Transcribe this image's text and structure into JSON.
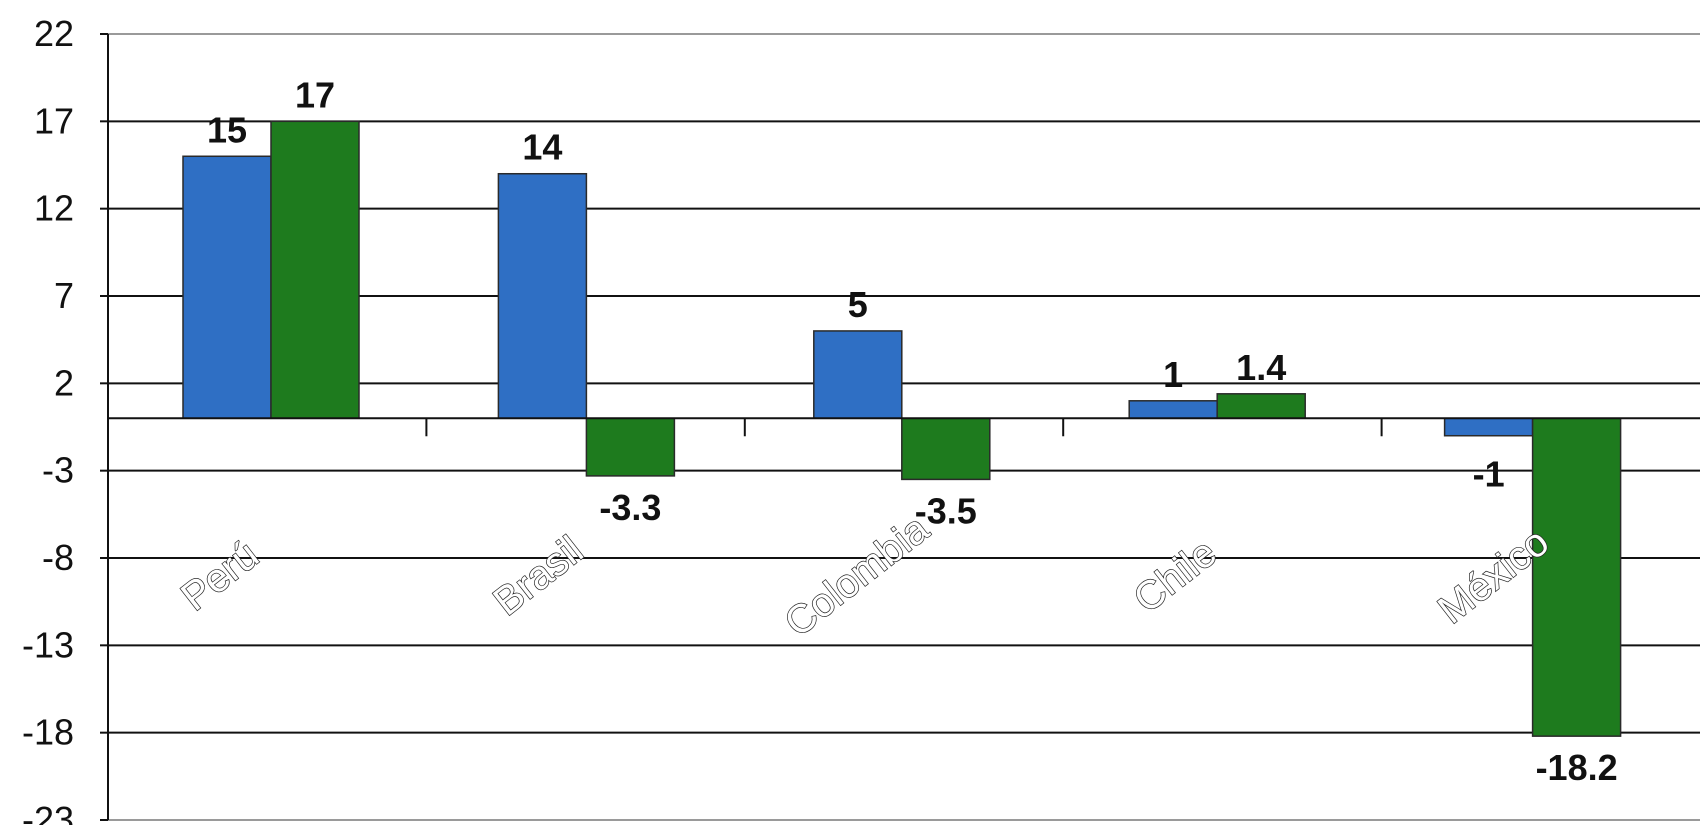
{
  "chart_data": {
    "type": "bar",
    "title": "",
    "xlabel": "",
    "ylabel": "",
    "categories": [
      "Perú",
      "Brasil",
      "Colombia",
      "Chile",
      "México"
    ],
    "series": [
      {
        "values": [
          15,
          14,
          5,
          1,
          -1
        ],
        "labels": [
          "15",
          "14",
          "5",
          "1",
          "-1"
        ],
        "color": "#2f6fc4"
      },
      {
        "values": [
          17,
          -3.3,
          -3.5,
          1.4,
          -18.2
        ],
        "labels": [
          "17",
          "-3.3",
          "-3.5",
          "1.4",
          "-18.2"
        ],
        "color": "#1e7b1e"
      }
    ],
    "ylim": [
      -23,
      22
    ],
    "yticks": [
      "22",
      "17",
      "12",
      "7",
      "2",
      "-3",
      "-8",
      "-13",
      "-18",
      "-23"
    ],
    "grid": true,
    "legend": "none"
  }
}
